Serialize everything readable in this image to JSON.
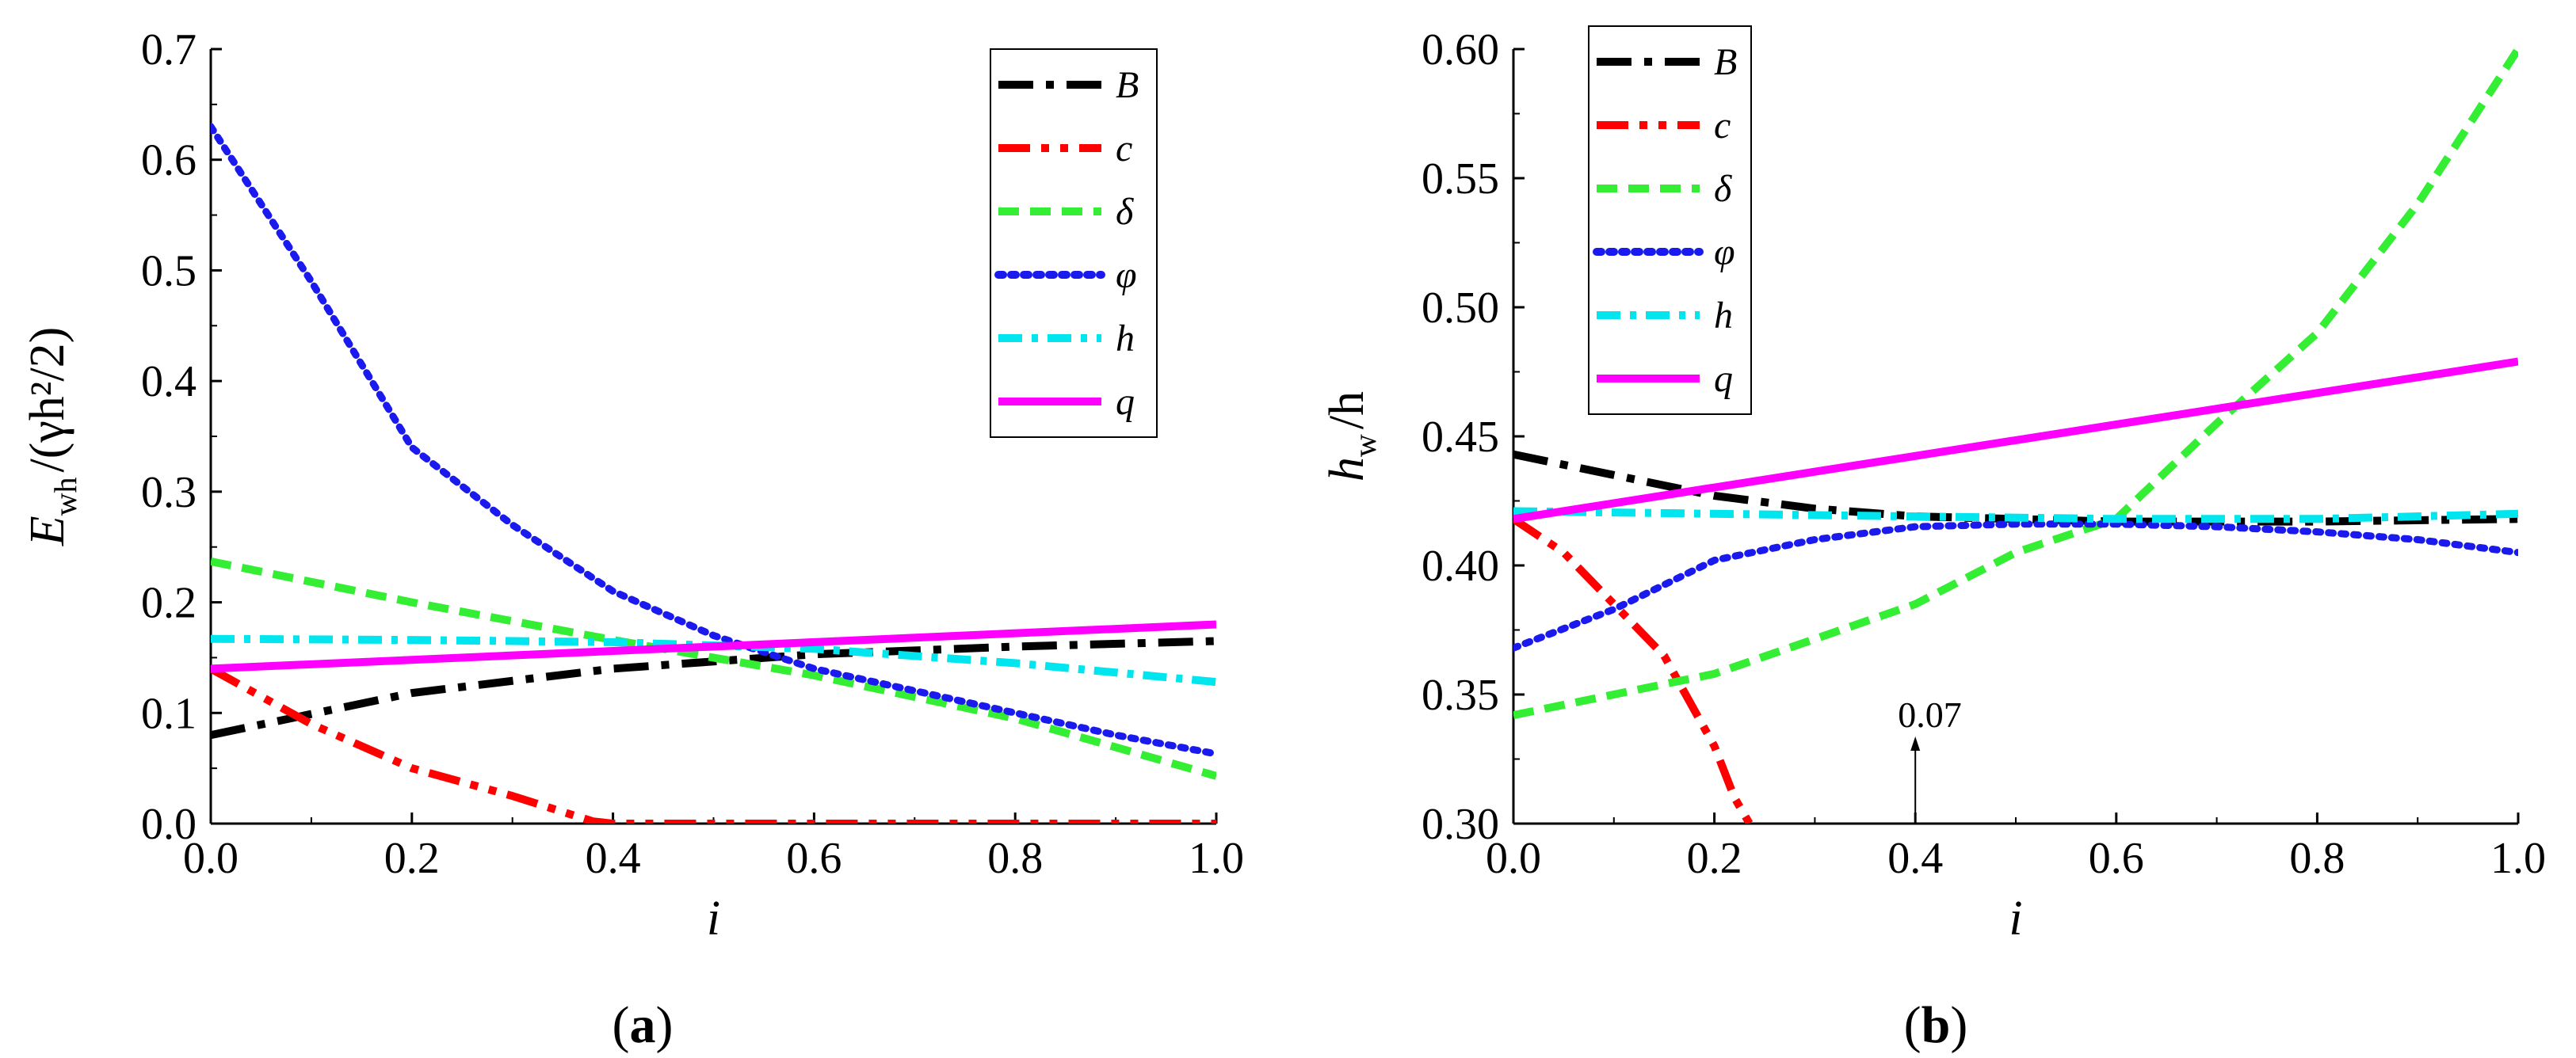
{
  "figure": {
    "caption_a": "a",
    "caption_b": "b"
  },
  "colors": {
    "B": "#000000",
    "c": "#ff0000",
    "delta": "#33ee33",
    "phi": "#1a1aee",
    "h": "#00e5ee",
    "q": "#ff00ff"
  },
  "chart_data": [
    {
      "type": "line",
      "panel": "a",
      "title": "",
      "xlabel": "i",
      "ylabel_main": "E",
      "ylabel_sub": "wh",
      "ylabel_rest": "/(γh²/2)",
      "xlim": [
        0,
        1.0
      ],
      "ylim": [
        0,
        0.7
      ],
      "xticks": [
        "0.0",
        "0.2",
        "0.4",
        "0.6",
        "0.8",
        "1.0"
      ],
      "yticks": [
        "0.0",
        "0.1",
        "0.2",
        "0.3",
        "0.4",
        "0.5",
        "0.6",
        "0.7"
      ],
      "legend_position": "top-right",
      "series": [
        {
          "key": "B",
          "name": "B",
          "x": [
            0,
            0.2,
            0.4,
            0.6,
            0.8,
            1.0
          ],
          "values": [
            0.08,
            0.118,
            0.14,
            0.153,
            0.16,
            0.165
          ]
        },
        {
          "key": "c",
          "name": "c",
          "x": [
            0,
            0.1,
            0.2,
            0.3,
            0.38,
            0.4,
            0.6,
            0.8,
            1.0
          ],
          "values": [
            0.14,
            0.09,
            0.05,
            0.025,
            0.002,
            0.0,
            0.0,
            0.0,
            0.0
          ]
        },
        {
          "key": "delta",
          "name": "δ",
          "x": [
            0,
            0.2,
            0.4,
            0.6,
            0.8,
            1.0
          ],
          "values": [
            0.237,
            0.2,
            0.166,
            0.134,
            0.095,
            0.043
          ]
        },
        {
          "key": "phi",
          "name": "φ",
          "x": [
            0,
            0.1,
            0.2,
            0.3,
            0.4,
            0.5,
            0.6,
            0.7,
            0.8,
            0.9,
            1.0
          ],
          "values": [
            0.63,
            0.49,
            0.34,
            0.27,
            0.21,
            0.17,
            0.14,
            0.12,
            0.1,
            0.08,
            0.063
          ]
        },
        {
          "key": "h",
          "name": "h",
          "x": [
            0,
            0.2,
            0.4,
            0.6,
            0.8,
            1.0
          ],
          "values": [
            0.167,
            0.166,
            0.164,
            0.158,
            0.145,
            0.128
          ]
        },
        {
          "key": "q",
          "name": "q",
          "x": [
            0,
            1.0
          ],
          "values": [
            0.14,
            0.18
          ]
        }
      ]
    },
    {
      "type": "line",
      "panel": "b",
      "title": "",
      "xlabel": "i",
      "ylabel_main": "h",
      "ylabel_sub": "w",
      "ylabel_rest": "/h",
      "xlim": [
        0,
        1.0
      ],
      "ylim": [
        0.3,
        0.6
      ],
      "xticks": [
        "0.0",
        "0.2",
        "0.4",
        "0.6",
        "0.8",
        "1.0"
      ],
      "yticks": [
        "0.30",
        "0.35",
        "0.40",
        "0.45",
        "0.50",
        "0.55",
        "0.60"
      ],
      "legend_position": "top-left",
      "annotation": {
        "text": "0.07",
        "x": 0.4,
        "y": 0.3
      },
      "series": [
        {
          "key": "B",
          "name": "B",
          "x": [
            0,
            0.1,
            0.2,
            0.3,
            0.4,
            0.6,
            0.8,
            1.0
          ],
          "values": [
            0.443,
            0.435,
            0.427,
            0.422,
            0.419,
            0.417,
            0.417,
            0.418
          ]
        },
        {
          "key": "c",
          "name": "c",
          "x": [
            0,
            0.05,
            0.1,
            0.15,
            0.2,
            0.22,
            0.235,
            0.24
          ],
          "values": [
            0.418,
            0.405,
            0.385,
            0.365,
            0.33,
            0.31,
            0.3,
            0.3
          ]
        },
        {
          "key": "delta",
          "name": "δ",
          "x": [
            0,
            0.2,
            0.4,
            0.5,
            0.6,
            0.7,
            0.8,
            0.9,
            1.0
          ],
          "values": [
            0.342,
            0.358,
            0.385,
            0.405,
            0.418,
            0.455,
            0.49,
            0.54,
            0.6
          ]
        },
        {
          "key": "phi",
          "name": "φ",
          "x": [
            0,
            0.1,
            0.2,
            0.3,
            0.4,
            0.5,
            0.6,
            0.7,
            0.8,
            0.9,
            1.0
          ],
          "values": [
            0.368,
            0.383,
            0.402,
            0.41,
            0.415,
            0.416,
            0.416,
            0.415,
            0.413,
            0.41,
            0.405
          ]
        },
        {
          "key": "h",
          "name": "h",
          "x": [
            0,
            0.2,
            0.4,
            0.6,
            0.8,
            1.0
          ],
          "values": [
            0.421,
            0.42,
            0.419,
            0.418,
            0.418,
            0.42
          ]
        },
        {
          "key": "q",
          "name": "q",
          "x": [
            0,
            1.0
          ],
          "values": [
            0.418,
            0.479
          ]
        }
      ]
    }
  ]
}
